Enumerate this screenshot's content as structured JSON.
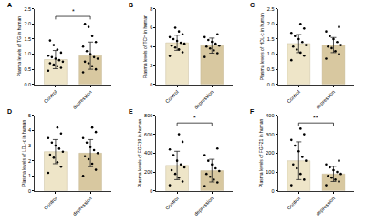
{
  "chart_data": [
    {
      "type": "bar",
      "title": "A",
      "y_label": "Plasma levels of TG in human",
      "categories": [
        "Control",
        "depression"
      ],
      "values": [
        0.82,
        0.95
      ],
      "error": [
        0.3,
        0.45
      ],
      "points": [
        [
          0.45,
          0.55,
          0.6,
          0.65,
          0.7,
          0.75,
          0.8,
          0.85,
          0.9,
          0.95,
          1.05,
          1.15,
          1.3,
          1.45
        ],
        [
          0.4,
          0.5,
          0.6,
          0.7,
          0.75,
          0.85,
          0.9,
          1.0,
          1.1,
          1.25,
          1.4,
          1.6,
          1.9,
          2.0
        ]
      ],
      "colors": [
        "#eee5c8",
        "#d8c8a0"
      ],
      "marker": "circle",
      "annotation": "*",
      "ylim": [
        0,
        2.5
      ],
      "yticks": [
        {
          "value": 0,
          "label": "0.0"
        },
        0.5,
        {
          "value": 1,
          "label": "1.0"
        },
        1.5,
        {
          "value": 2,
          "label": "2.0"
        },
        2.5
      ]
    },
    {
      "type": "bar",
      "title": "B",
      "y_label": "Plasma levels of TCH in human",
      "categories": [
        "Control",
        "depression"
      ],
      "values": [
        4.4,
        4.1
      ],
      "error": [
        0.8,
        0.8
      ],
      "points": [
        [
          3.0,
          3.4,
          3.7,
          3.9,
          4.1,
          4.3,
          4.4,
          4.6,
          4.8,
          5.0,
          5.3,
          5.6,
          6.0
        ],
        [
          2.9,
          3.3,
          3.6,
          3.8,
          4.0,
          4.1,
          4.3,
          4.5,
          4.7,
          5.0,
          5.3
        ]
      ],
      "colors": [
        "#eee5c8",
        "#d8c8a0"
      ],
      "marker": "circle",
      "ylim": [
        0,
        8
      ],
      "yticks": [
        0,
        2,
        4,
        6,
        8
      ]
    },
    {
      "type": "bar",
      "title": "C",
      "y_label": "Plasma levels of HDL-c in human",
      "categories": [
        "Control",
        "depression"
      ],
      "values": [
        1.35,
        1.3
      ],
      "error": [
        0.3,
        0.25
      ],
      "points": [
        [
          0.8,
          0.95,
          1.05,
          1.15,
          1.25,
          1.3,
          1.4,
          1.5,
          1.6,
          1.7,
          1.85,
          2.0
        ],
        [
          0.85,
          1.0,
          1.1,
          1.2,
          1.25,
          1.3,
          1.4,
          1.5,
          1.6,
          1.75,
          1.9
        ]
      ],
      "colors": [
        "#eee5c8",
        "#d8c8a0"
      ],
      "marker": "circle",
      "ylim": [
        0,
        2.5
      ],
      "yticks": [
        {
          "value": 0,
          "label": "0.0"
        },
        0.5,
        {
          "value": 1,
          "label": "1.0"
        },
        1.5,
        {
          "value": 2,
          "label": "2.0"
        },
        2.5
      ]
    },
    {
      "type": "bar",
      "title": "D",
      "y_label": "Plasma levels of LDL-c in human",
      "categories": [
        "Control",
        "depression"
      ],
      "values": [
        2.6,
        2.5
      ],
      "error": [
        0.8,
        0.9
      ],
      "points": [
        [
          1.2,
          1.6,
          1.9,
          2.2,
          2.4,
          2.6,
          2.8,
          3.0,
          3.2,
          3.5,
          3.8,
          4.2
        ],
        [
          1.0,
          1.4,
          1.8,
          2.1,
          2.3,
          2.5,
          2.7,
          2.9,
          3.2,
          3.5,
          3.9,
          4.2
        ]
      ],
      "colors": [
        "#eee5c8",
        "#d8c8a0"
      ],
      "marker": "circle",
      "ylim": [
        0,
        5
      ],
      "yticks": [
        0,
        1,
        2,
        3,
        4,
        5
      ]
    },
    {
      "type": "bar",
      "title": "E",
      "y_label": "Plasma levels of FGF19 in human",
      "categories": [
        "Control",
        "depression"
      ],
      "values": [
        270,
        215
      ],
      "error": [
        150,
        120
      ],
      "points": [
        [
          60,
          100,
          140,
          180,
          220,
          250,
          280,
          320,
          380,
          440,
          520,
          600
        ],
        [
          50,
          90,
          120,
          150,
          180,
          210,
          240,
          280,
          320,
          380,
          450
        ]
      ],
      "colors": [
        "#eee5c8",
        "#d8c8a0"
      ],
      "marker": "circle",
      "annotation": "*",
      "ylim": [
        0,
        800
      ],
      "yticks": [
        0,
        200,
        400,
        600,
        800
      ]
    },
    {
      "type": "bar",
      "title": "F",
      "y_label": "Plasma levels of FGF21 in human",
      "categories": [
        "Control",
        "depression"
      ],
      "values": [
        160,
        90
      ],
      "error": [
        100,
        40
      ],
      "points": [
        [
          30,
          60,
          90,
          120,
          140,
          160,
          180,
          210,
          240,
          270,
          300,
          330
        ],
        [
          30,
          50,
          60,
          70,
          80,
          90,
          100,
          110,
          125,
          140,
          160
        ]
      ],
      "colors": [
        "#eee5c8",
        "#d8c8a0"
      ],
      "marker": "circle",
      "annotation": "**",
      "ylim": [
        0,
        400
      ],
      "yticks": [
        0,
        100,
        200,
        300,
        400
      ]
    }
  ]
}
